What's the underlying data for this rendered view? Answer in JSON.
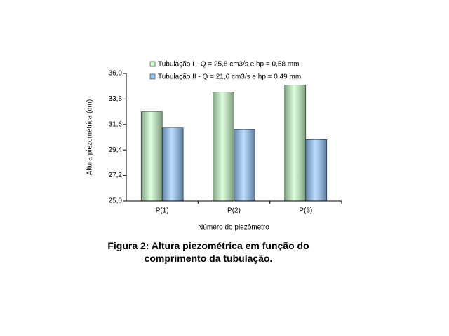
{
  "chart_data": {
    "type": "bar",
    "caption": "Figura 2: Altura piezométrica em função do comprimento da tubulação.",
    "x_label": "Número do piezômetro",
    "y_label": "Altura piezométrica (cm)",
    "categories": [
      "P(1)",
      "P(2)",
      "P(3)"
    ],
    "series": [
      {
        "name": "Tubulação I - Q = 25,8 cm3/s e hp = 0,58 mm",
        "color": "#ccffcc",
        "values": [
          32.7,
          34.4,
          35.0
        ]
      },
      {
        "name": "Tubulação II - Q = 21,6 cm3/s e hp = 0,49 mm",
        "color": "#99ccff",
        "values": [
          31.3,
          31.2,
          30.3
        ]
      }
    ],
    "ylim": [
      25,
      36
    ],
    "yticks": [
      {
        "value": 25,
        "label": "25,0"
      },
      {
        "value": 27.2,
        "label": "27,2"
      },
      {
        "value": 29.4,
        "label": "29,4"
      },
      {
        "value": 31.6,
        "label": "31,6"
      },
      {
        "value": 33.8,
        "label": "33,8"
      },
      {
        "value": 36,
        "label": "36,0"
      }
    ],
    "grid": false
  }
}
